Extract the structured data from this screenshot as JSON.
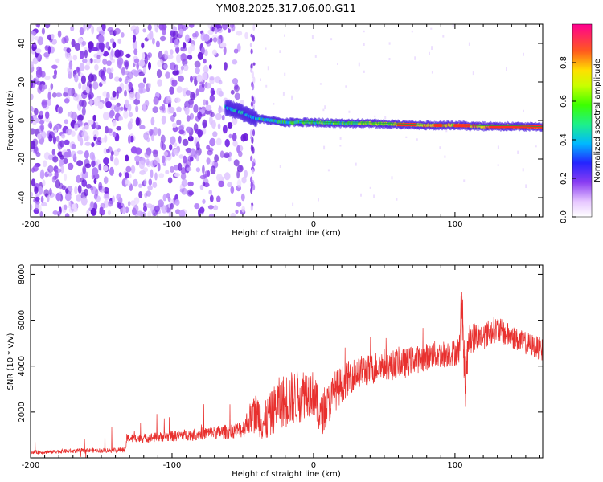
{
  "page": {
    "title": "YM08.2025.317.06.00.G11"
  },
  "chart_data": [
    {
      "type": "heatmap",
      "name": "spectrogram",
      "xlabel": "Height of straight line (km)",
      "ylabel": "Frequency (Hz)",
      "xlim": [
        -200,
        162
      ],
      "ylim": [
        -50,
        50
      ],
      "xticks": [
        -200,
        -100,
        0,
        100
      ],
      "xtick_labels": [
        "-200",
        "-100",
        "0",
        "100"
      ],
      "yticks": [
        -40,
        -20,
        0,
        20,
        40
      ],
      "ytick_labels": [
        "-40",
        "-20",
        "0",
        "20",
        "40"
      ],
      "noise_region_x": [
        -200,
        -45
      ],
      "ridge": [
        {
          "x": -62,
          "y": 7
        },
        {
          "x": -55,
          "y": 5
        },
        {
          "x": -50,
          "y": 4
        },
        {
          "x": -45,
          "y": 2
        },
        {
          "x": -40,
          "y": 1
        },
        {
          "x": -30,
          "y": 0
        },
        {
          "x": -20,
          "y": -1
        },
        {
          "x": -10,
          "y": -1
        },
        {
          "x": 0,
          "y": -1
        },
        {
          "x": 20,
          "y": -1.5
        },
        {
          "x": 40,
          "y": -1.5
        },
        {
          "x": 60,
          "y": -2
        },
        {
          "x": 80,
          "y": -2.5
        },
        {
          "x": 100,
          "y": -2.5
        },
        {
          "x": 120,
          "y": -3
        },
        {
          "x": 140,
          "y": -3
        },
        {
          "x": 162,
          "y": -3.5
        }
      ],
      "colorbar": {
        "label": "Normalized spectral amplitude",
        "range": [
          0,
          1
        ],
        "ticks": [
          "0.0",
          "0.2",
          "0.4",
          "0.6",
          "0.8"
        ],
        "tick_values": [
          0.0,
          0.2,
          0.4,
          0.6,
          0.8
        ]
      }
    },
    {
      "type": "line",
      "name": "snr",
      "xlabel": "Height of straight line (km)",
      "ylabel": "SNR (10 * v/v)",
      "xlim": [
        -200,
        162
      ],
      "ylim": [
        0,
        8400
      ],
      "xticks": [
        -200,
        -100,
        0,
        100
      ],
      "xtick_labels": [
        "-200",
        "-100",
        "0",
        "100"
      ],
      "yticks": [
        2000,
        4000,
        6000,
        8000
      ],
      "ytick_labels": [
        "2000",
        "4000",
        "6000",
        "8000"
      ],
      "color": "#e8302e",
      "series": [
        {
          "name": "SNR",
          "x": [
            -200,
            -190,
            -180,
            -170,
            -160,
            -150,
            -140,
            -133,
            -132,
            -120,
            -110,
            -100,
            -90,
            -80,
            -70,
            -60,
            -50,
            -45,
            -40,
            -35,
            -30,
            -25,
            -20,
            -15,
            -10,
            -5,
            0,
            5,
            10,
            15,
            20,
            25,
            30,
            35,
            40,
            45,
            50,
            55,
            60,
            65,
            70,
            75,
            80,
            85,
            90,
            95,
            100,
            103,
            105,
            107,
            110,
            115,
            120,
            125,
            130,
            135,
            140,
            145,
            150,
            155,
            162
          ],
          "y": [
            250,
            250,
            280,
            300,
            320,
            320,
            340,
            350,
            850,
            850,
            900,
            950,
            1000,
            1050,
            1100,
            1150,
            1250,
            1700,
            2000,
            1500,
            1900,
            2400,
            2500,
            2600,
            2700,
            2900,
            2800,
            1800,
            2300,
            2900,
            3200,
            3500,
            3700,
            3800,
            3800,
            4000,
            4100,
            4000,
            4200,
            4100,
            4300,
            4300,
            4400,
            4500,
            4500,
            4550,
            4600,
            4700,
            7000,
            3200,
            5200,
            5300,
            5300,
            5500,
            5600,
            5400,
            5300,
            5100,
            5000,
            4900,
            4700
          ],
          "noise_amplitude": [
            80,
            80,
            90,
            100,
            100,
            100,
            110,
            110,
            200,
            200,
            220,
            240,
            250,
            270,
            290,
            320,
            380,
            700,
            900,
            900,
            1000,
            1100,
            1200,
            1200,
            1200,
            1100,
            1000,
            900,
            900,
            900,
            800,
            750,
            700,
            700,
            700,
            700,
            650,
            650,
            650,
            650,
            600,
            600,
            600,
            600,
            600,
            600,
            600,
            600,
            1400,
            1400,
            700,
            650,
            600,
            600,
            600,
            550,
            550,
            500,
            500,
            500,
            500
          ]
        }
      ]
    }
  ]
}
